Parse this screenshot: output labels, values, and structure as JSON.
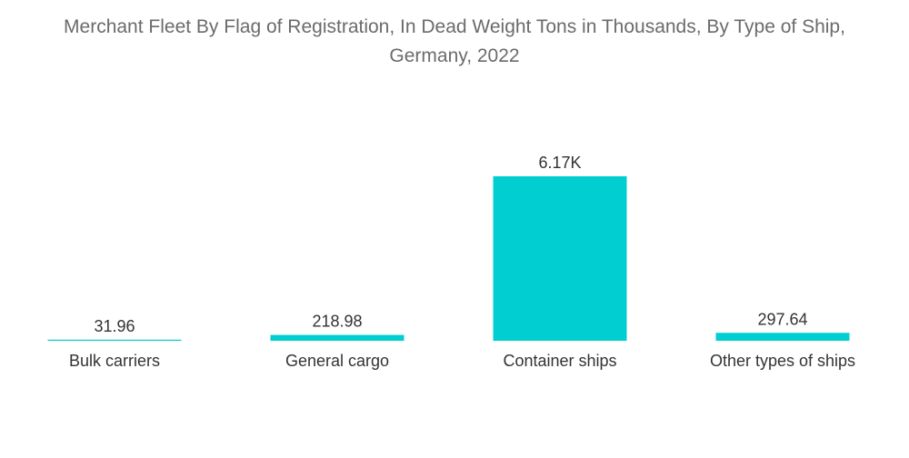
{
  "chart_data": {
    "type": "bar",
    "title_line1": "Merchant Fleet By Flag of Registration, In Dead Weight Tons in Thousands, By Type of Ship,",
    "title_line2": "Germany, 2022",
    "categories": [
      "Bulk carriers",
      "General cargo",
      "Container ships",
      "Other types of ships"
    ],
    "values": [
      31.96,
      218.98,
      6170,
      297.64
    ],
    "value_labels": [
      "31.96",
      "218.98",
      "6.17K",
      "297.64"
    ],
    "xlabel": "",
    "ylabel": "",
    "ylim": [
      0,
      6170
    ],
    "grid": false,
    "legend": "none",
    "bar_color": "#00ced1",
    "text_color": "#333333",
    "title_color": "#6b6b6b"
  }
}
